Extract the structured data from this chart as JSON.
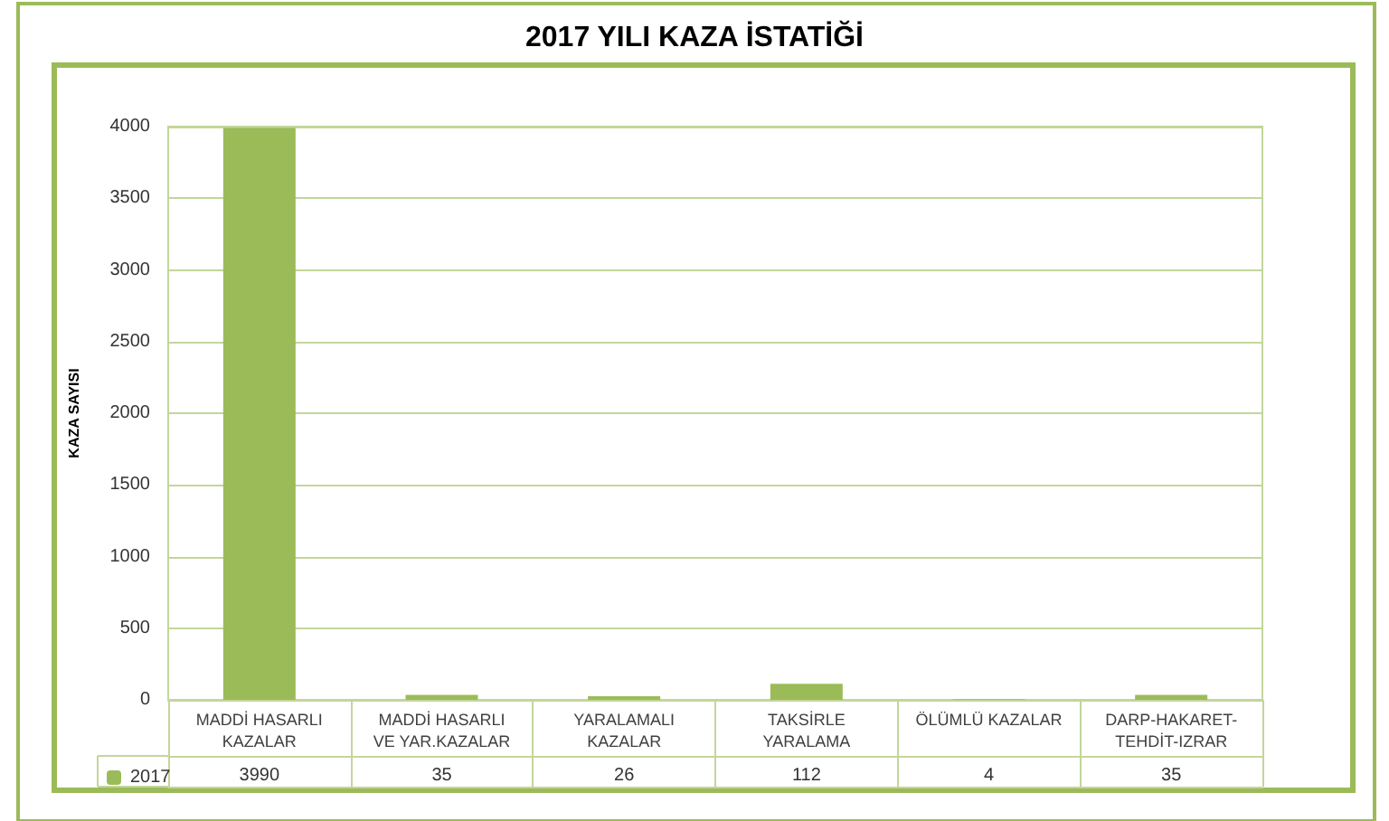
{
  "chart_data": {
    "type": "bar",
    "title": "2017 YILI KAZA İSTATİĞİ",
    "ylabel": "KAZA SAYISI",
    "categories": [
      "MADDİ HASARLI KAZALAR",
      "MADDİ HASARLI VE YAR.KAZALAR",
      "YARALAMALI KAZALAR",
      "TAKSİRLE YARALAMA",
      "ÖLÜMLÜ KAZALAR",
      "DARP-HAKARET-TEHDİT-IZRAR"
    ],
    "series": [
      {
        "name": "2017",
        "color": "#9bbb59",
        "values": [
          3990,
          35,
          26,
          112,
          4,
          35
        ]
      }
    ],
    "ylim": [
      0,
      4000
    ],
    "yticks": [
      0,
      500,
      1000,
      1500,
      2000,
      2500,
      3000,
      3500,
      4000
    ],
    "grid": "y",
    "legend": "bottom left",
    "data_labels": true
  }
}
